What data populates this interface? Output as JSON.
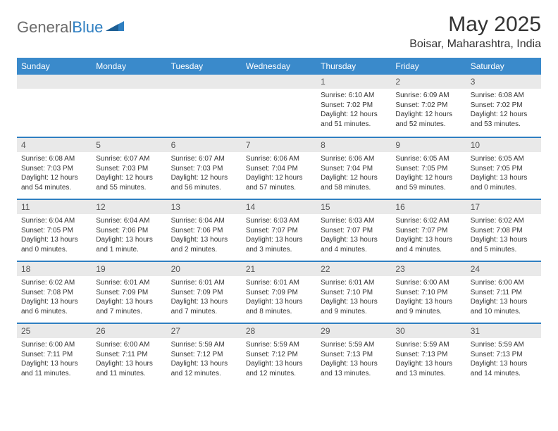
{
  "logo": {
    "text_gray": "General",
    "text_blue": "Blue"
  },
  "title": "May 2025",
  "location": "Boisar, Maharashtra, India",
  "colors": {
    "header_bar": "#3a8acb",
    "week_divider": "#2f7fc1",
    "daynum_bg": "#e9e9e9",
    "text": "#333333",
    "logo_gray": "#6b6b6b",
    "logo_blue": "#2f7fc1"
  },
  "days_of_week": [
    "Sunday",
    "Monday",
    "Tuesday",
    "Wednesday",
    "Thursday",
    "Friday",
    "Saturday"
  ],
  "weeks": [
    [
      {
        "n": "",
        "sr": "",
        "ss": "",
        "dl": ""
      },
      {
        "n": "",
        "sr": "",
        "ss": "",
        "dl": ""
      },
      {
        "n": "",
        "sr": "",
        "ss": "",
        "dl": ""
      },
      {
        "n": "",
        "sr": "",
        "ss": "",
        "dl": ""
      },
      {
        "n": "1",
        "sr": "Sunrise: 6:10 AM",
        "ss": "Sunset: 7:02 PM",
        "dl": "Daylight: 12 hours and 51 minutes."
      },
      {
        "n": "2",
        "sr": "Sunrise: 6:09 AM",
        "ss": "Sunset: 7:02 PM",
        "dl": "Daylight: 12 hours and 52 minutes."
      },
      {
        "n": "3",
        "sr": "Sunrise: 6:08 AM",
        "ss": "Sunset: 7:02 PM",
        "dl": "Daylight: 12 hours and 53 minutes."
      }
    ],
    [
      {
        "n": "4",
        "sr": "Sunrise: 6:08 AM",
        "ss": "Sunset: 7:03 PM",
        "dl": "Daylight: 12 hours and 54 minutes."
      },
      {
        "n": "5",
        "sr": "Sunrise: 6:07 AM",
        "ss": "Sunset: 7:03 PM",
        "dl": "Daylight: 12 hours and 55 minutes."
      },
      {
        "n": "6",
        "sr": "Sunrise: 6:07 AM",
        "ss": "Sunset: 7:03 PM",
        "dl": "Daylight: 12 hours and 56 minutes."
      },
      {
        "n": "7",
        "sr": "Sunrise: 6:06 AM",
        "ss": "Sunset: 7:04 PM",
        "dl": "Daylight: 12 hours and 57 minutes."
      },
      {
        "n": "8",
        "sr": "Sunrise: 6:06 AM",
        "ss": "Sunset: 7:04 PM",
        "dl": "Daylight: 12 hours and 58 minutes."
      },
      {
        "n": "9",
        "sr": "Sunrise: 6:05 AM",
        "ss": "Sunset: 7:05 PM",
        "dl": "Daylight: 12 hours and 59 minutes."
      },
      {
        "n": "10",
        "sr": "Sunrise: 6:05 AM",
        "ss": "Sunset: 7:05 PM",
        "dl": "Daylight: 13 hours and 0 minutes."
      }
    ],
    [
      {
        "n": "11",
        "sr": "Sunrise: 6:04 AM",
        "ss": "Sunset: 7:05 PM",
        "dl": "Daylight: 13 hours and 0 minutes."
      },
      {
        "n": "12",
        "sr": "Sunrise: 6:04 AM",
        "ss": "Sunset: 7:06 PM",
        "dl": "Daylight: 13 hours and 1 minute."
      },
      {
        "n": "13",
        "sr": "Sunrise: 6:04 AM",
        "ss": "Sunset: 7:06 PM",
        "dl": "Daylight: 13 hours and 2 minutes."
      },
      {
        "n": "14",
        "sr": "Sunrise: 6:03 AM",
        "ss": "Sunset: 7:07 PM",
        "dl": "Daylight: 13 hours and 3 minutes."
      },
      {
        "n": "15",
        "sr": "Sunrise: 6:03 AM",
        "ss": "Sunset: 7:07 PM",
        "dl": "Daylight: 13 hours and 4 minutes."
      },
      {
        "n": "16",
        "sr": "Sunrise: 6:02 AM",
        "ss": "Sunset: 7:07 PM",
        "dl": "Daylight: 13 hours and 4 minutes."
      },
      {
        "n": "17",
        "sr": "Sunrise: 6:02 AM",
        "ss": "Sunset: 7:08 PM",
        "dl": "Daylight: 13 hours and 5 minutes."
      }
    ],
    [
      {
        "n": "18",
        "sr": "Sunrise: 6:02 AM",
        "ss": "Sunset: 7:08 PM",
        "dl": "Daylight: 13 hours and 6 minutes."
      },
      {
        "n": "19",
        "sr": "Sunrise: 6:01 AM",
        "ss": "Sunset: 7:09 PM",
        "dl": "Daylight: 13 hours and 7 minutes."
      },
      {
        "n": "20",
        "sr": "Sunrise: 6:01 AM",
        "ss": "Sunset: 7:09 PM",
        "dl": "Daylight: 13 hours and 7 minutes."
      },
      {
        "n": "21",
        "sr": "Sunrise: 6:01 AM",
        "ss": "Sunset: 7:09 PM",
        "dl": "Daylight: 13 hours and 8 minutes."
      },
      {
        "n": "22",
        "sr": "Sunrise: 6:01 AM",
        "ss": "Sunset: 7:10 PM",
        "dl": "Daylight: 13 hours and 9 minutes."
      },
      {
        "n": "23",
        "sr": "Sunrise: 6:00 AM",
        "ss": "Sunset: 7:10 PM",
        "dl": "Daylight: 13 hours and 9 minutes."
      },
      {
        "n": "24",
        "sr": "Sunrise: 6:00 AM",
        "ss": "Sunset: 7:11 PM",
        "dl": "Daylight: 13 hours and 10 minutes."
      }
    ],
    [
      {
        "n": "25",
        "sr": "Sunrise: 6:00 AM",
        "ss": "Sunset: 7:11 PM",
        "dl": "Daylight: 13 hours and 11 minutes."
      },
      {
        "n": "26",
        "sr": "Sunrise: 6:00 AM",
        "ss": "Sunset: 7:11 PM",
        "dl": "Daylight: 13 hours and 11 minutes."
      },
      {
        "n": "27",
        "sr": "Sunrise: 5:59 AM",
        "ss": "Sunset: 7:12 PM",
        "dl": "Daylight: 13 hours and 12 minutes."
      },
      {
        "n": "28",
        "sr": "Sunrise: 5:59 AM",
        "ss": "Sunset: 7:12 PM",
        "dl": "Daylight: 13 hours and 12 minutes."
      },
      {
        "n": "29",
        "sr": "Sunrise: 5:59 AM",
        "ss": "Sunset: 7:13 PM",
        "dl": "Daylight: 13 hours and 13 minutes."
      },
      {
        "n": "30",
        "sr": "Sunrise: 5:59 AM",
        "ss": "Sunset: 7:13 PM",
        "dl": "Daylight: 13 hours and 13 minutes."
      },
      {
        "n": "31",
        "sr": "Sunrise: 5:59 AM",
        "ss": "Sunset: 7:13 PM",
        "dl": "Daylight: 13 hours and 14 minutes."
      }
    ]
  ]
}
